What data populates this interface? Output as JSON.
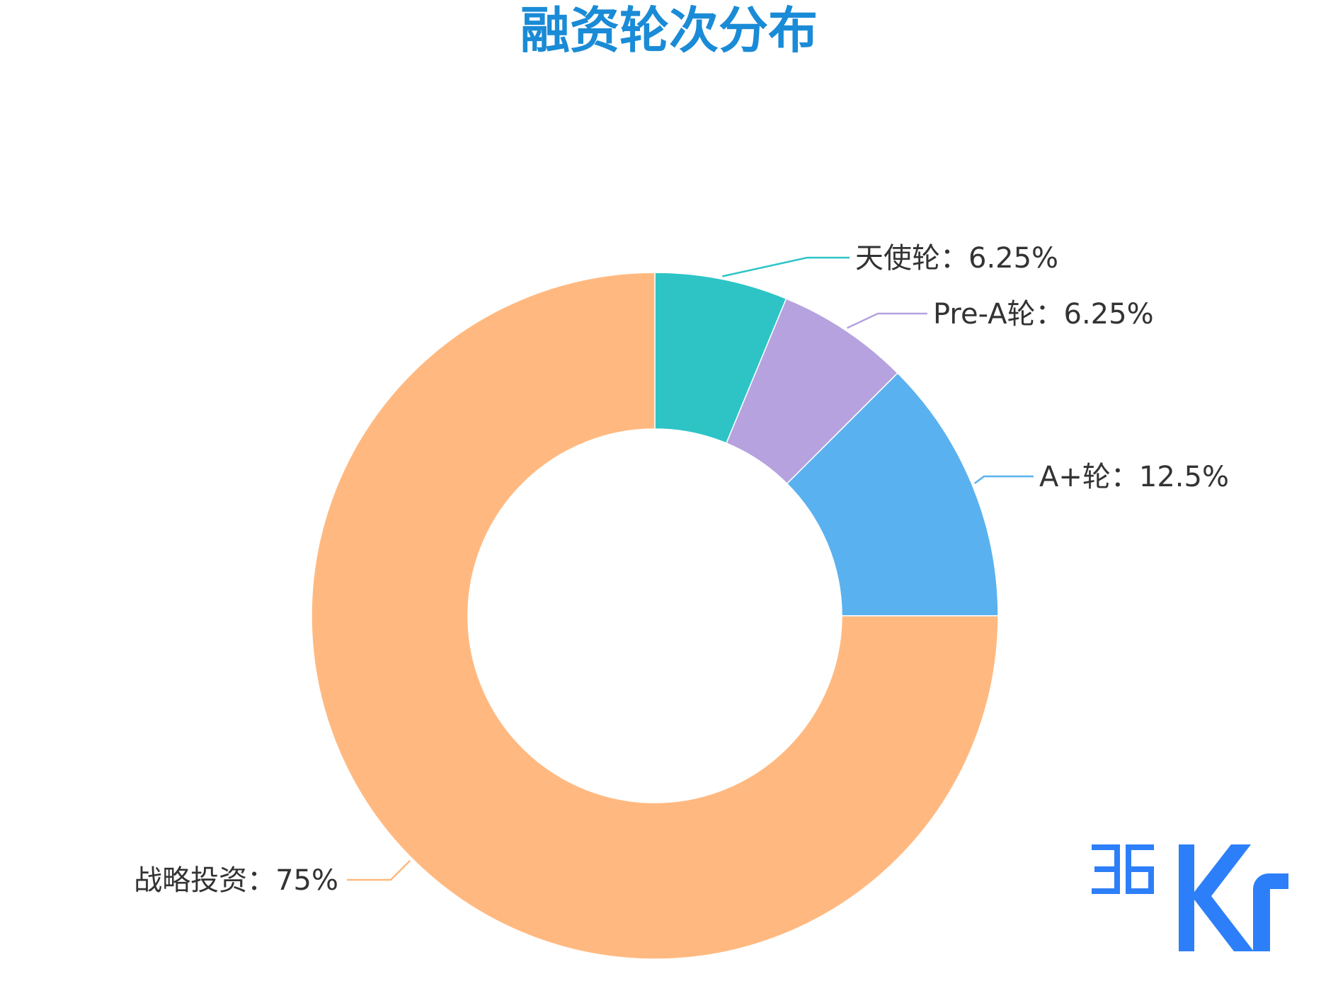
{
  "chart_data": {
    "type": "pie",
    "title": "融资轮次分布",
    "categories": [
      "天使轮",
      "Pre-A轮",
      "A+轮",
      "战略投资"
    ],
    "values": [
      6.25,
      6.25,
      12.5,
      75
    ],
    "unit": "%",
    "labels": [
      "天使轮：6.25%",
      "Pre-A轮：6.25%",
      "A+轮：12.5%",
      "战略投资：75%"
    ],
    "colors": [
      "#2ec4c6",
      "#b6a2de",
      "#5ab1ef",
      "#ffb980"
    ],
    "title_color": "#1a8bd6"
  },
  "logo": {
    "text": "36Kr",
    "color": "#2d7ff9"
  }
}
